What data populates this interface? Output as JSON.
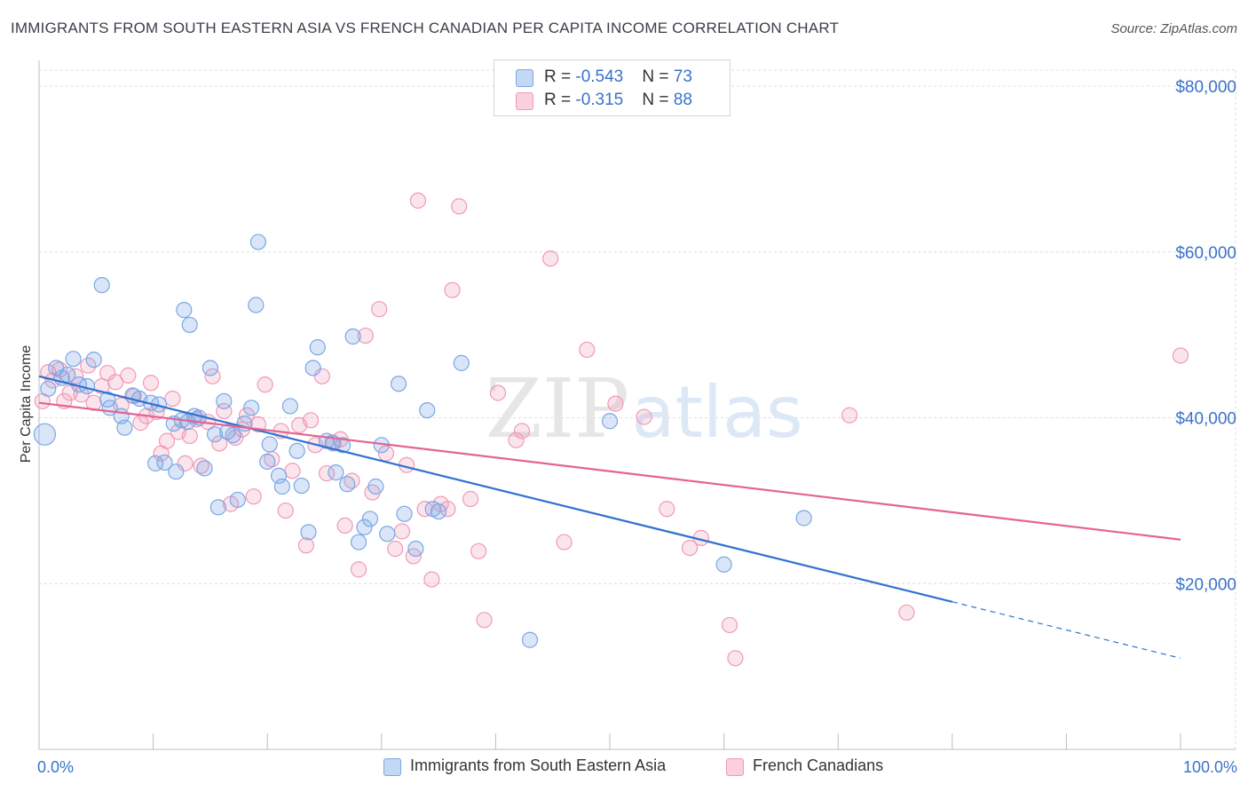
{
  "header": {
    "title": "IMMIGRANTS FROM SOUTH EASTERN ASIA VS FRENCH CANADIAN PER CAPITA INCOME CORRELATION CHART",
    "source": "Source: ZipAtlas.com"
  },
  "watermark": {
    "part1": "ZIP",
    "part2": "atlas"
  },
  "legend": {
    "series1": {
      "r_label": "R = ",
      "r_value": "-0.543",
      "n_label": "N = ",
      "n_value": "73",
      "color": "#7aa7e6"
    },
    "series2": {
      "r_label": "R = ",
      "r_value": "-0.315",
      "n_label": "N = ",
      "n_value": "88",
      "color": "#f199b6"
    }
  },
  "chart_data": {
    "type": "scatter",
    "ylabel": "Per Capita Income",
    "xlim": [
      0,
      100
    ],
    "ylim": [
      0,
      83000
    ],
    "x_tick_labels": {
      "min": "0.0%",
      "max": "100.0%"
    },
    "y_ticks": [
      {
        "value": 20000,
        "label": "$20,000"
      },
      {
        "value": 40000,
        "label": "$40,000"
      },
      {
        "value": 60000,
        "label": "$60,000"
      },
      {
        "value": 80000,
        "label": "$80,000"
      }
    ],
    "series": [
      {
        "name": "Immigrants from South Eastern Asia",
        "color": "#7aa7e6",
        "line_color": "#2f72cf",
        "trend": {
          "x0": 0,
          "y0": 45000,
          "x1": 80,
          "y1": 17800,
          "dash_to_x": 100,
          "dash_to_y": 11000
        },
        "points": [
          [
            0.5,
            38000
          ],
          [
            0.8,
            43500
          ],
          [
            1.5,
            46000
          ],
          [
            2,
            44800
          ],
          [
            2.5,
            45200
          ],
          [
            3,
            47100
          ],
          [
            3.5,
            44000
          ],
          [
            4.2,
            43800
          ],
          [
            4.8,
            47000
          ],
          [
            5.5,
            56000
          ],
          [
            6,
            42200
          ],
          [
            6.2,
            41200
          ],
          [
            7.2,
            40200
          ],
          [
            7.5,
            38800
          ],
          [
            8.2,
            42700
          ],
          [
            8.8,
            42300
          ],
          [
            9.8,
            41800
          ],
          [
            10.5,
            41600
          ],
          [
            10.2,
            34500
          ],
          [
            11,
            34600
          ],
          [
            11.8,
            39300
          ],
          [
            12,
            33500
          ],
          [
            12.5,
            39700
          ],
          [
            12.7,
            53000
          ],
          [
            13,
            39500
          ],
          [
            13.2,
            51200
          ],
          [
            13.6,
            40200
          ],
          [
            14,
            40000
          ],
          [
            14.5,
            33900
          ],
          [
            15,
            46000
          ],
          [
            15.4,
            38000
          ],
          [
            15.7,
            29200
          ],
          [
            16.2,
            42000
          ],
          [
            16.5,
            38300
          ],
          [
            17,
            37900
          ],
          [
            17.4,
            30100
          ],
          [
            18,
            39300
          ],
          [
            18.6,
            41200
          ],
          [
            19,
            53600
          ],
          [
            19.2,
            61200
          ],
          [
            20,
            34700
          ],
          [
            20.2,
            36800
          ],
          [
            21,
            33000
          ],
          [
            21.3,
            31700
          ],
          [
            22,
            41400
          ],
          [
            22.6,
            36000
          ],
          [
            23,
            31800
          ],
          [
            23.6,
            26200
          ],
          [
            24,
            46000
          ],
          [
            24.4,
            48500
          ],
          [
            25.2,
            37200
          ],
          [
            25.7,
            37000
          ],
          [
            26,
            33400
          ],
          [
            26.6,
            36700
          ],
          [
            27,
            32000
          ],
          [
            27.5,
            49800
          ],
          [
            28,
            25000
          ],
          [
            28.5,
            26800
          ],
          [
            29,
            27800
          ],
          [
            29.5,
            31700
          ],
          [
            30,
            36700
          ],
          [
            30.5,
            26000
          ],
          [
            31.5,
            44100
          ],
          [
            32,
            28400
          ],
          [
            33,
            24200
          ],
          [
            34,
            40900
          ],
          [
            34.5,
            29000
          ],
          [
            35,
            28700
          ],
          [
            37,
            46600
          ],
          [
            43,
            13200
          ],
          [
            50,
            39600
          ],
          [
            60,
            22300
          ],
          [
            67,
            27900
          ]
        ]
      },
      {
        "name": "French Canadians",
        "color": "#f199b6",
        "line_color": "#e4648f",
        "trend": {
          "x0": 0,
          "y0": 41800,
          "x1": 100,
          "y1": 25300
        },
        "points": [
          [
            0.3,
            42000
          ],
          [
            0.8,
            45500
          ],
          [
            1.2,
            44500
          ],
          [
            1.8,
            45800
          ],
          [
            2.2,
            42000
          ],
          [
            2.7,
            43000
          ],
          [
            3.2,
            45000
          ],
          [
            3.7,
            42800
          ],
          [
            4.3,
            46300
          ],
          [
            4.8,
            41800
          ],
          [
            5.5,
            43800
          ],
          [
            6,
            45400
          ],
          [
            6.7,
            44300
          ],
          [
            7.2,
            41500
          ],
          [
            7.8,
            45100
          ],
          [
            8.3,
            42600
          ],
          [
            8.9,
            39400
          ],
          [
            9.4,
            40200
          ],
          [
            9.8,
            44200
          ],
          [
            10.3,
            40700
          ],
          [
            10.7,
            35700
          ],
          [
            11.2,
            37200
          ],
          [
            11.7,
            42300
          ],
          [
            12.2,
            38300
          ],
          [
            12.8,
            34500
          ],
          [
            13.2,
            37800
          ],
          [
            13.8,
            39800
          ],
          [
            14.2,
            34200
          ],
          [
            14.8,
            39500
          ],
          [
            15.2,
            45000
          ],
          [
            15.8,
            36900
          ],
          [
            16.2,
            40800
          ],
          [
            16.8,
            29600
          ],
          [
            17.2,
            37600
          ],
          [
            17.8,
            38600
          ],
          [
            18.2,
            40300
          ],
          [
            18.8,
            30500
          ],
          [
            19.2,
            39200
          ],
          [
            19.8,
            44000
          ],
          [
            20.4,
            35000
          ],
          [
            21.2,
            38400
          ],
          [
            21.6,
            28800
          ],
          [
            22.2,
            33600
          ],
          [
            22.8,
            39100
          ],
          [
            23.4,
            24600
          ],
          [
            23.8,
            39700
          ],
          [
            24.2,
            36700
          ],
          [
            24.8,
            45000
          ],
          [
            25.2,
            33300
          ],
          [
            25.8,
            36900
          ],
          [
            26.4,
            37400
          ],
          [
            26.8,
            27000
          ],
          [
            27.4,
            32400
          ],
          [
            28,
            21700
          ],
          [
            28.6,
            49900
          ],
          [
            29.2,
            31000
          ],
          [
            29.8,
            53100
          ],
          [
            30.4,
            35700
          ],
          [
            31.2,
            24200
          ],
          [
            31.8,
            26300
          ],
          [
            32.2,
            34300
          ],
          [
            32.8,
            23300
          ],
          [
            33.2,
            66200
          ],
          [
            33.8,
            29000
          ],
          [
            34.4,
            20500
          ],
          [
            35.2,
            29600
          ],
          [
            35.8,
            29000
          ],
          [
            36.2,
            55400
          ],
          [
            36.8,
            65500
          ],
          [
            37.8,
            30200
          ],
          [
            38.5,
            23900
          ],
          [
            39,
            15600
          ],
          [
            40.2,
            43000
          ],
          [
            41.8,
            37300
          ],
          [
            42.3,
            38400
          ],
          [
            44.8,
            59200
          ],
          [
            46,
            25000
          ],
          [
            48,
            48200
          ],
          [
            50.5,
            41700
          ],
          [
            53,
            40100
          ],
          [
            55,
            29000
          ],
          [
            57,
            24300
          ],
          [
            58,
            25500
          ],
          [
            60.5,
            15000
          ],
          [
            61,
            11000
          ],
          [
            71,
            40300
          ],
          [
            76,
            16500
          ],
          [
            100,
            47500
          ]
        ]
      }
    ]
  }
}
